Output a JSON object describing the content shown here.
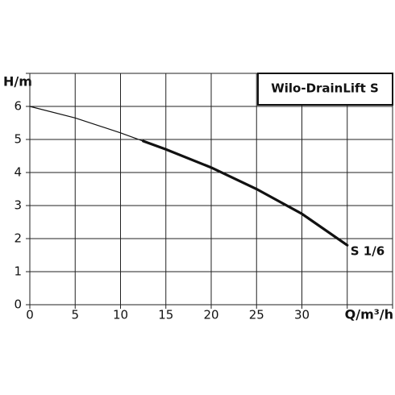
{
  "chart_data": {
    "type": "line",
    "title": "Wilo-DrainLift S",
    "x_label": "Q/m³/h",
    "y_label": "H/m",
    "xlim": [
      0,
      40
    ],
    "ylim": [
      0,
      7
    ],
    "xticks": [
      0,
      5,
      10,
      15,
      20,
      25,
      30
    ],
    "yticks": [
      0,
      1,
      2,
      3,
      4,
      5,
      6
    ],
    "xgrid": [
      0,
      5,
      10,
      15,
      20,
      25,
      30,
      35,
      40
    ],
    "ygrid": [
      0,
      1,
      2,
      3,
      4,
      5,
      6,
      7
    ],
    "grid": true,
    "series": [
      {
        "color": "#111111",
        "width": 1.2,
        "x": [
          0,
          5,
          10,
          12.5
        ],
        "values": [
          6,
          5.65,
          5.2,
          4.95
        ]
      },
      {
        "name": "S 1/6",
        "color": "#111111",
        "width": 3.2,
        "x": [
          12.5,
          15,
          20,
          25,
          30,
          35
        ],
        "values": [
          4.95,
          4.7,
          4.15,
          3.5,
          2.75,
          1.8
        ]
      }
    ]
  }
}
